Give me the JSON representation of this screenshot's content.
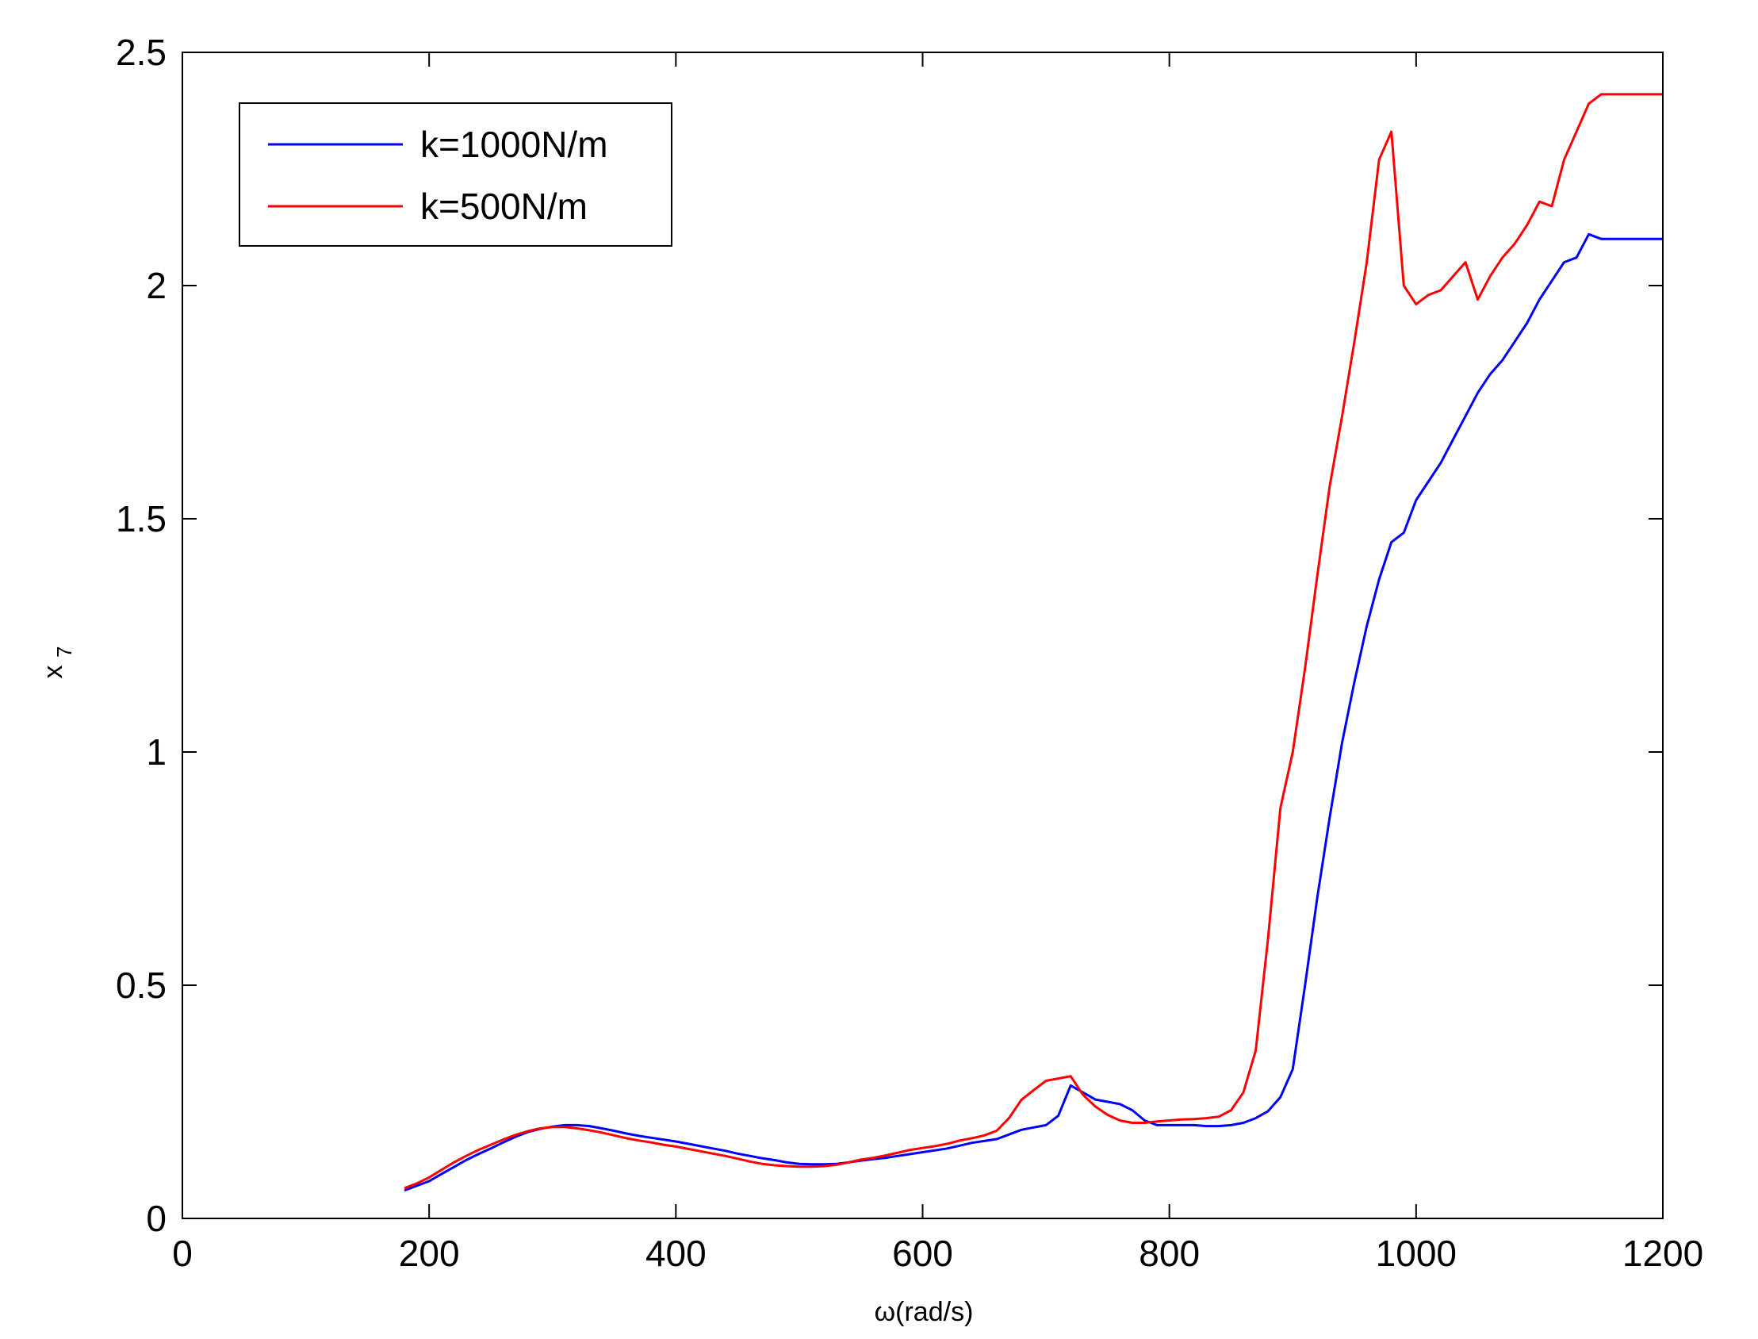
{
  "chart_data": {
    "type": "line",
    "title": "",
    "xlabel": "ω(rad/s)",
    "ylabel": "x7",
    "ylabel_parts": {
      "base": "x",
      "sub": "7"
    },
    "xlim": [
      0,
      1200
    ],
    "ylim": [
      0,
      2.5
    ],
    "xticks": [
      0,
      200,
      400,
      600,
      800,
      1000,
      1200
    ],
    "yticks": [
      0,
      0.5,
      1,
      1.5,
      2,
      2.5
    ],
    "xtick_labels": [
      "0",
      "200",
      "400",
      "600",
      "800",
      "1000",
      "1200"
    ],
    "ytick_labels": [
      "0",
      "0.5",
      "1",
      "1.5",
      "2",
      "2.5"
    ],
    "grid": false,
    "legend_position": "top-left",
    "series": [
      {
        "name": "k=1000N/m",
        "color": "#0000ff",
        "x": [
          180,
          190,
          200,
          210,
          220,
          230,
          240,
          250,
          260,
          270,
          280,
          290,
          300,
          310,
          320,
          330,
          340,
          350,
          360,
          370,
          380,
          390,
          400,
          410,
          420,
          430,
          440,
          450,
          460,
          470,
          480,
          490,
          500,
          510,
          520,
          530,
          540,
          550,
          560,
          570,
          580,
          590,
          600,
          610,
          620,
          630,
          640,
          650,
          660,
          670,
          680,
          690,
          700,
          710,
          720,
          730,
          740,
          750,
          760,
          770,
          780,
          790,
          800,
          810,
          820,
          830,
          840,
          850,
          860,
          870,
          880,
          890,
          900,
          910,
          920,
          930,
          940,
          950,
          960,
          970,
          980,
          990,
          1000,
          1010,
          1020,
          1030,
          1040,
          1050,
          1060,
          1070,
          1080,
          1090,
          1100,
          1110,
          1120,
          1130,
          1140,
          1150,
          1160,
          1170,
          1180,
          1190,
          1200
        ],
        "y": [
          0.06,
          0.07,
          0.08,
          0.095,
          0.11,
          0.125,
          0.138,
          0.15,
          0.163,
          0.175,
          0.185,
          0.192,
          0.197,
          0.2,
          0.2,
          0.198,
          0.193,
          0.188,
          0.182,
          0.177,
          0.173,
          0.169,
          0.165,
          0.16,
          0.155,
          0.15,
          0.145,
          0.139,
          0.134,
          0.129,
          0.125,
          0.12,
          0.117,
          0.116,
          0.116,
          0.117,
          0.12,
          0.124,
          0.127,
          0.13,
          0.134,
          0.138,
          0.142,
          0.146,
          0.15,
          0.156,
          0.162,
          0.166,
          0.17,
          0.18,
          0.19,
          0.195,
          0.2,
          0.22,
          0.285,
          0.27,
          0.255,
          0.25,
          0.245,
          0.232,
          0.21,
          0.2,
          0.2,
          0.2,
          0.2,
          0.198,
          0.198,
          0.2,
          0.205,
          0.215,
          0.23,
          0.26,
          0.32,
          0.5,
          0.69,
          0.86,
          1.02,
          1.15,
          1.27,
          1.37,
          1.45,
          1.47,
          1.54,
          1.58,
          1.62,
          1.67,
          1.72,
          1.77,
          1.81,
          1.84,
          1.88,
          1.92,
          1.97,
          2.01,
          2.05,
          2.06,
          2.11,
          2.1,
          2.1,
          2.1,
          2.1,
          2.1,
          2.1
        ]
      },
      {
        "name": "k=500N/m",
        "color": "#ff0000",
        "x": [
          180,
          190,
          200,
          210,
          220,
          230,
          240,
          250,
          260,
          270,
          280,
          290,
          300,
          310,
          320,
          330,
          340,
          350,
          360,
          370,
          380,
          390,
          400,
          410,
          420,
          430,
          440,
          450,
          460,
          470,
          480,
          490,
          500,
          510,
          520,
          530,
          540,
          550,
          560,
          570,
          580,
          590,
          600,
          610,
          620,
          630,
          640,
          650,
          660,
          670,
          680,
          690,
          700,
          710,
          720,
          730,
          740,
          750,
          760,
          770,
          780,
          790,
          800,
          810,
          820,
          830,
          840,
          850,
          860,
          870,
          880,
          890,
          900,
          910,
          920,
          930,
          940,
          950,
          960,
          970,
          980,
          990,
          1000,
          1010,
          1020,
          1030,
          1040,
          1050,
          1060,
          1070,
          1080,
          1090,
          1100,
          1110,
          1120,
          1130,
          1140,
          1150,
          1160,
          1170,
          1180,
          1190,
          1200
        ],
        "y": [
          0.065,
          0.075,
          0.088,
          0.104,
          0.12,
          0.134,
          0.147,
          0.158,
          0.169,
          0.179,
          0.187,
          0.193,
          0.196,
          0.196,
          0.193,
          0.189,
          0.184,
          0.178,
          0.172,
          0.167,
          0.163,
          0.158,
          0.154,
          0.149,
          0.144,
          0.139,
          0.134,
          0.128,
          0.122,
          0.117,
          0.114,
          0.112,
          0.111,
          0.111,
          0.112,
          0.115,
          0.12,
          0.126,
          0.13,
          0.135,
          0.141,
          0.147,
          0.151,
          0.155,
          0.16,
          0.167,
          0.172,
          0.178,
          0.188,
          0.215,
          0.254,
          0.275,
          0.295,
          0.3,
          0.305,
          0.265,
          0.24,
          0.222,
          0.21,
          0.205,
          0.205,
          0.208,
          0.21,
          0.212,
          0.213,
          0.215,
          0.218,
          0.232,
          0.27,
          0.36,
          0.6,
          0.88,
          1.0,
          1.18,
          1.38,
          1.57,
          1.72,
          1.88,
          2.05,
          2.27,
          2.33,
          2.0,
          1.96,
          1.98,
          1.99,
          2.02,
          2.05,
          1.97,
          2.02,
          2.06,
          2.09,
          2.13,
          2.18,
          2.17,
          2.27,
          2.33,
          2.39,
          2.41,
          2.41,
          2.41,
          2.41,
          2.41,
          2.41
        ]
      }
    ]
  }
}
